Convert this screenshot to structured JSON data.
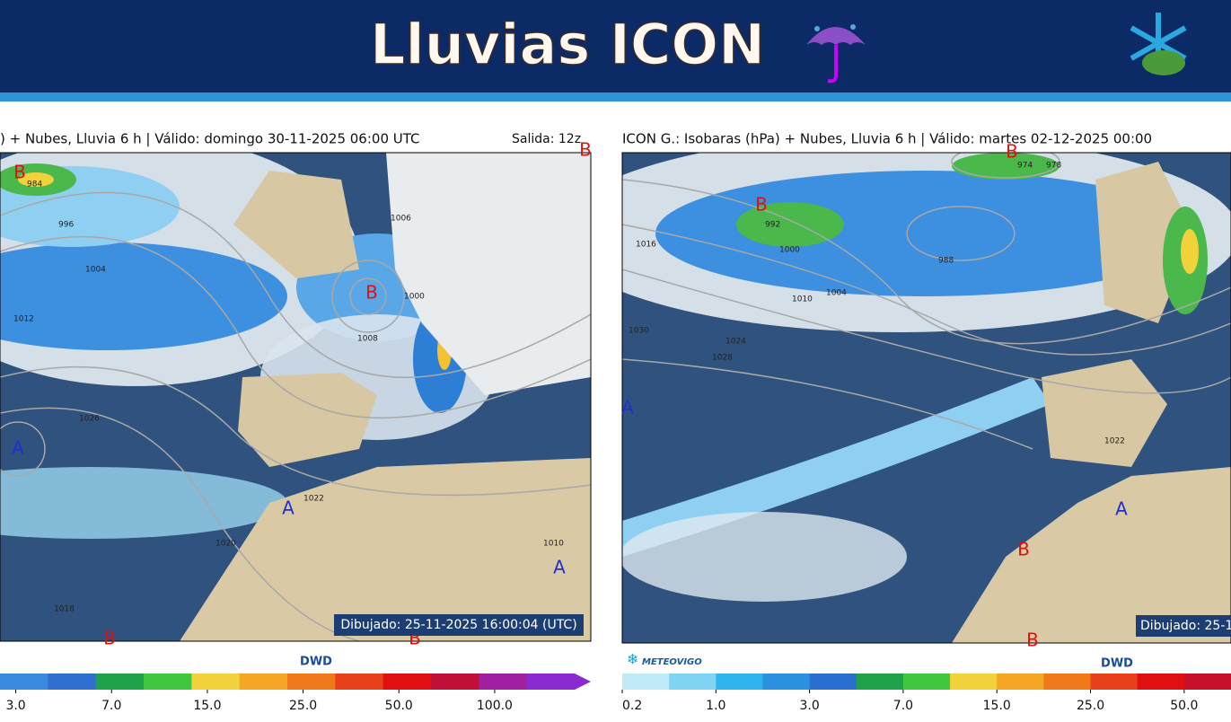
{
  "header": {
    "title": "Lluvias ICON"
  },
  "left_panel": {
    "title": ") + Nubes, Lluvia 6 h | Válido: domingo 30-11-2025 06:00 UTC",
    "run": "Salida: 12z",
    "pressure_centers": [
      "B",
      "B",
      "B",
      "A",
      "A",
      "A",
      "B",
      "B"
    ],
    "isobars": [
      "984",
      "996",
      "1004",
      "1012",
      "1026",
      "1022",
      "1020",
      "1018",
      "1008",
      "1000",
      "1006",
      "1010"
    ],
    "drawn": "Dibujado: 25-11-2025 16:00:04 (UTC)",
    "logo": "DWD",
    "colorbar": [
      "3.0",
      "7.0",
      "15.0",
      "25.0",
      "50.0",
      "100.0"
    ]
  },
  "right_panel": {
    "title": "ICON G.: Isobaras (hPa) + Nubes, Lluvia 6 h | Válido: martes 02-12-2025 00:00",
    "pressure_centers": [
      "B",
      "B",
      "A",
      "A",
      "B",
      "B"
    ],
    "isobars": [
      "974",
      "978",
      "988",
      "992",
      "1000",
      "1004",
      "1010",
      "1016",
      "1024",
      "1028",
      "1030",
      "1022"
    ],
    "drawn": "Dibujado: 25-1",
    "logo": "DWD",
    "brand": "METEOVIGO",
    "colorbar": [
      "0.2",
      "1.0",
      "3.0",
      "7.0",
      "15.0",
      "25.0",
      "50.0"
    ]
  }
}
